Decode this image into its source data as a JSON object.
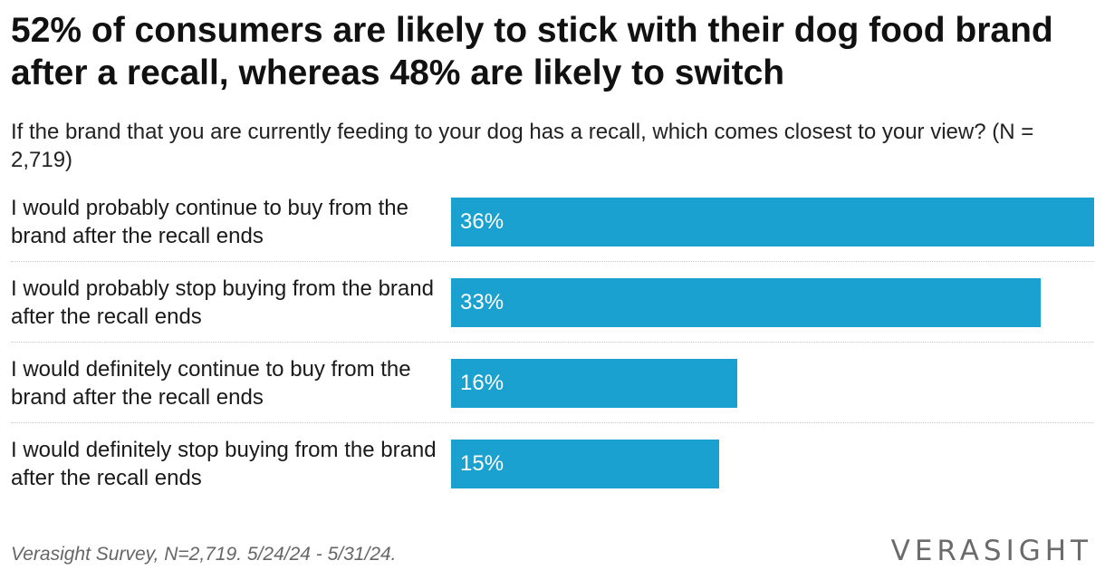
{
  "header": {
    "title": "52% of consumers are likely to stick with their dog food brand after a recall, whereas 48% are likely to switch",
    "subtitle": "If the brand that you are currently feeding to your dog has a recall, which comes closest to your view? (N = 2,719)"
  },
  "footer": {
    "source": "Verasight Survey, N=2,719. 5/24/24 - 5/31/24.",
    "logo": "VERASIGHT"
  },
  "chart_data": {
    "type": "bar",
    "orientation": "horizontal",
    "categories": [
      "I would probably continue to buy from the brand after the recall ends",
      "I would probably stop buying from the brand after the recall ends",
      "I would definitely continue to buy from the brand after the recall ends",
      "I would definitely stop buying from the brand after the recall ends"
    ],
    "values": [
      36,
      33,
      16,
      15
    ],
    "value_labels": [
      "36%",
      "33%",
      "16%",
      "15%"
    ],
    "title": "52% of consumers are likely to stick with their dog food brand after a recall, whereas 48% are likely to switch",
    "subtitle": "If the brand that you are currently feeding to your dog has a recall, which comes closest to your view? (N = 2,719)",
    "xlim": [
      0,
      36
    ],
    "grid": false,
    "colors": {
      "bar": "#1ba1cf"
    }
  }
}
